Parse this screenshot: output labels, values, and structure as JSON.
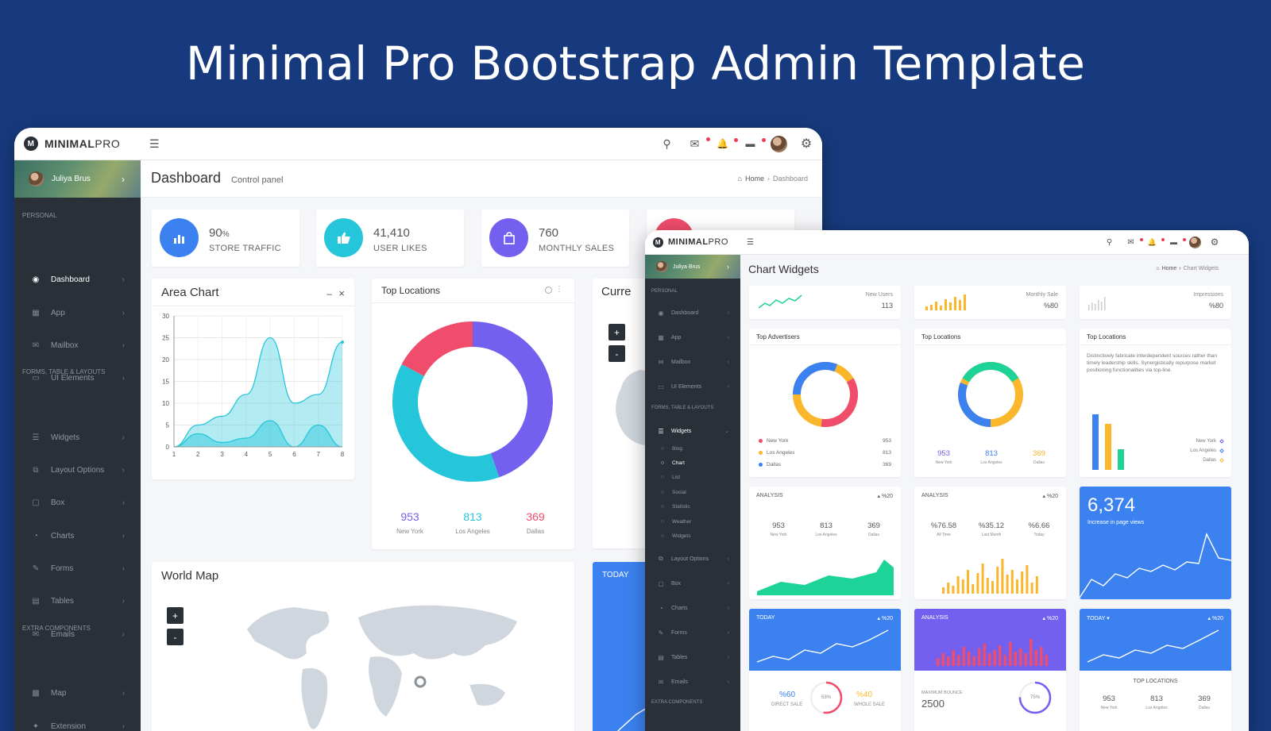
{
  "hero_title": "Minimal Pro Bootstrap Admin Template",
  "brand": {
    "bold": "MINIMAL",
    "light": "PRO",
    "mark": "M"
  },
  "colors": {
    "sidebar": "#2a3037",
    "blue": "#3b82f0",
    "cyan": "#26c6da",
    "purple": "#7460ee",
    "red": "#ef4d6b",
    "green": "#1ed398",
    "yellow": "#fbb72c"
  },
  "icons": {
    "menu": "☰",
    "search": "⚲",
    "mail": "✉",
    "bell": "🔔",
    "chat": "▬",
    "gear": "⚙",
    "home": "⌂",
    "chevron": "›"
  },
  "main": {
    "user": "Juliya Brus",
    "sections": {
      "personal": "PERSONAL",
      "forms": "FORMS, TABLE & LAYOUTS",
      "extra": "EXTRA COMPONENTS"
    },
    "nav": [
      "Dashboard",
      "App",
      "Mailbox",
      "UI Elements",
      "Widgets",
      "Layout Options",
      "Box",
      "Charts",
      "Forms",
      "Tables",
      "Emails",
      "Map",
      "Extension"
    ],
    "page_title": "Dashboard",
    "page_subtitle": "Control panel",
    "breadcrumb": {
      "home": "Home",
      "current": "Dashboard"
    },
    "stats": [
      {
        "value": "90",
        "suffix": "%",
        "label": "STORE TRAFFIC"
      },
      {
        "value": "41,410",
        "suffix": "",
        "label": "USER LIKES"
      },
      {
        "value": "760",
        "suffix": "",
        "label": "MONTHLY SALES"
      }
    ],
    "area_chart": {
      "title": "Area Chart",
      "minimize": "–",
      "close": "×"
    },
    "top_locations": {
      "title": "Top Locations"
    },
    "current_card": {
      "title": "Curre"
    },
    "world_map": {
      "title": "World Map",
      "zoom_in": "+",
      "zoom_out": "-"
    },
    "today_card": {
      "title": "TODAY"
    }
  },
  "chart_data": [
    {
      "type": "area",
      "title": "Area Chart",
      "x": [
        1,
        2,
        3,
        4,
        5,
        6,
        7,
        8
      ],
      "ylim": [
        0,
        30
      ],
      "yticks": [
        0,
        5,
        10,
        15,
        20,
        25,
        30
      ],
      "series": [
        {
          "values": [
            0,
            5,
            7,
            12,
            25,
            10,
            12,
            24
          ]
        },
        {
          "values": [
            0,
            3,
            1,
            2,
            6,
            0,
            5,
            0
          ]
        }
      ],
      "grid": true
    },
    {
      "type": "pie",
      "title": "Top Locations",
      "categories": [
        "New York",
        "Los Angeles",
        "Dallas"
      ],
      "values": [
        953,
        813,
        369
      ],
      "labels": [
        "953",
        "813",
        "369"
      ],
      "colors": [
        "#7460ee",
        "#26c6da",
        "#ef4d6b"
      ]
    }
  ],
  "second": {
    "user": "Juliya Brus",
    "sections": {
      "personal": "PERSONAL",
      "forms": "FORMS, TABLE & LAYOUTS",
      "extra": "EXTRA COMPONENTS"
    },
    "nav": [
      "Dashboard",
      "App",
      "Mailbox",
      "UI Elements",
      "Widgets"
    ],
    "subnav": [
      "Blog",
      "Chart",
      "List",
      "Social",
      "Statistic",
      "Weather",
      "Widgets"
    ],
    "nav2": [
      "Layout Options",
      "Box",
      "Charts",
      "Forms",
      "Tables",
      "Emails"
    ],
    "page_title": "Chart Widgets",
    "breadcrumb": {
      "home": "Home",
      "current": "Chart Widgets"
    },
    "mini": [
      {
        "label": "New Users",
        "value": "113"
      },
      {
        "label": "Monthly Sale",
        "value": "%80"
      },
      {
        "label": "Impressions",
        "value": "%80"
      }
    ],
    "top_advertisers": {
      "title": "Top Advertisers",
      "legend": [
        {
          "name": "New York",
          "value": "953"
        },
        {
          "name": "Los Angeles",
          "value": "813"
        },
        {
          "name": "Dallas",
          "value": "369"
        }
      ]
    },
    "top_locations": {
      "title": "Top Locations",
      "nums": [
        {
          "v": "953",
          "l": "New York"
        },
        {
          "v": "813",
          "l": "Los Angeles"
        },
        {
          "v": "369",
          "l": "Dallas"
        }
      ]
    },
    "top_locations_text": {
      "title": "Top Locations",
      "text": "Distinctively fabricate interdependent sources rather than timely leadership skills. Synergistically repurpose market positioning functionalities via top-line.",
      "legend": [
        "New York",
        "Los Angeles",
        "Dallas"
      ]
    },
    "analysis1": {
      "title": "ANALYSIS",
      "badge": "%20",
      "nums": [
        {
          "v": "953",
          "l": "New York"
        },
        {
          "v": "813",
          "l": "Los Angeles"
        },
        {
          "v": "369",
          "l": "Dallas"
        }
      ]
    },
    "analysis2": {
      "title": "ANALYSIS",
      "badge": "%20",
      "nums": [
        {
          "v": "%76.58",
          "l": "All Time"
        },
        {
          "v": "%35.12",
          "l": "Last Month"
        },
        {
          "v": "%6.66",
          "l": "Today"
        }
      ]
    },
    "views": {
      "value": "6,374",
      "label": "Increase in page views"
    },
    "today1": {
      "title": "TODAY",
      "badge": "%20",
      "a": "%60",
      "al": "DIRECT SALE",
      "b": "%40",
      "bl": "WHOLE SALE",
      "ring": "53%"
    },
    "analysis3": {
      "title": "ANALYSIS",
      "badge": "%20",
      "sub": "MAXIMUM BOUNCE",
      "value": "2500",
      "ring": "75%"
    },
    "today2": {
      "title": "TODAY",
      "badge": "%20",
      "sub": "TOP LOCATIONS",
      "nums": [
        {
          "v": "953",
          "l": "New York"
        },
        {
          "v": "813",
          "l": "Los Angeles"
        },
        {
          "v": "369",
          "l": "Dallas"
        }
      ]
    }
  }
}
